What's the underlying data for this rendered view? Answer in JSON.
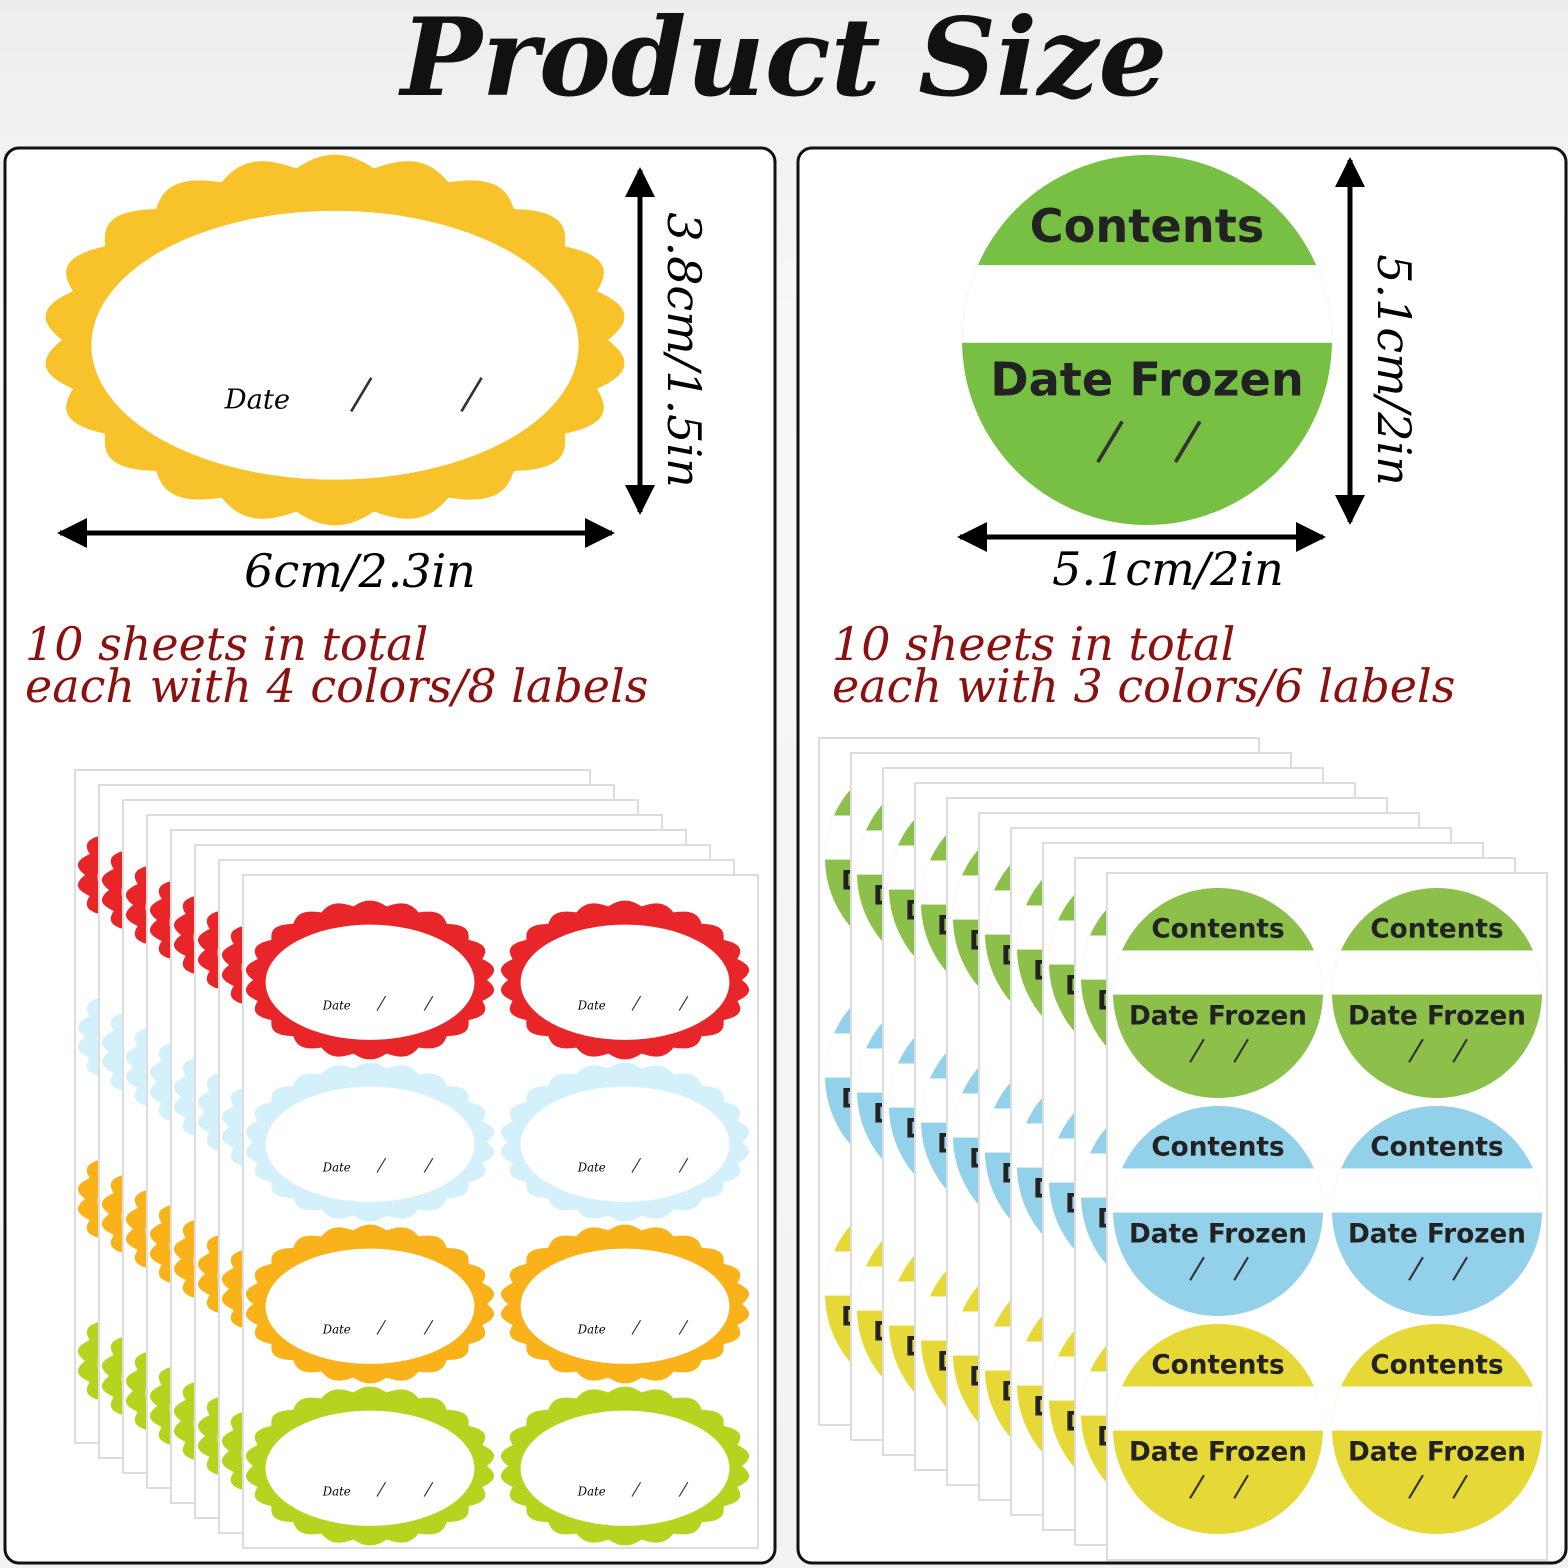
{
  "title": "Product Size",
  "left": {
    "height": "3.8cm/1.5in",
    "width": "6cm/2.3in",
    "line1": "10 sheets in total",
    "line2": "each with 4 colors/8 labels",
    "label_text": "Date"
  },
  "right": {
    "height": "5.1cm/2in",
    "width": "5.1cm/2in",
    "line1": "10 sheets in total",
    "line2": "each with 3 colors/6 labels",
    "label_top": "Contents",
    "label_bottom": "Date Frozen"
  }
}
